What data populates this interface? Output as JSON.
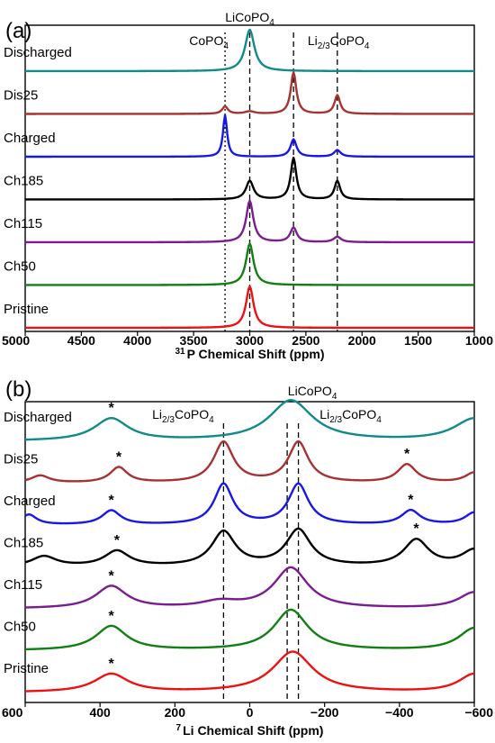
{
  "chart_data": [
    {
      "type": "line",
      "panel_label": "(a)",
      "xlabel_sup": "31",
      "xlabel": "P Chemical Shift (ppm)",
      "xlim": [
        5000,
        1000
      ],
      "xticks": [
        "5000",
        "4500",
        "4000",
        "3500",
        "3000",
        "2500",
        "2000",
        "1500",
        "1000"
      ],
      "x_tick_values": [
        5000,
        4500,
        4000,
        3500,
        3000,
        2500,
        2000,
        1500,
        1000
      ],
      "x_reversed": true,
      "grid": false,
      "reference_lines": [
        {
          "x": 3220,
          "style": "dotted",
          "label": "CoPO",
          "sub": "4"
        },
        {
          "x": 3000,
          "style": "dashed",
          "label": "LiCoPO",
          "sub": "4"
        },
        {
          "x": 2610,
          "style": "dashed",
          "label": "Li",
          "sub": "2/3",
          "label2": "CoPO",
          "sub2": "4"
        },
        {
          "x": 2220,
          "style": "dashed"
        }
      ],
      "series": [
        {
          "name": "Discharged",
          "color": "#138A8A",
          "peaks": [
            [
              3000,
              1.0,
              50
            ]
          ]
        },
        {
          "name": "Dis25",
          "color": "#A63232",
          "peaks": [
            [
              3220,
              0.18,
              30
            ],
            [
              3000,
              0.06,
              50
            ],
            [
              2610,
              1.0,
              30
            ],
            [
              2220,
              0.45,
              30
            ]
          ]
        },
        {
          "name": "Charged",
          "color": "#1818E6",
          "peaks": [
            [
              3220,
              1.0,
              22
            ],
            [
              2610,
              0.42,
              32
            ],
            [
              2220,
              0.16,
              35
            ]
          ]
        },
        {
          "name": "Ch185",
          "color": "#000000",
          "peaks": [
            [
              3000,
              0.45,
              40
            ],
            [
              2610,
              1.0,
              30
            ],
            [
              2220,
              0.45,
              30
            ]
          ]
        },
        {
          "name": "Ch115",
          "color": "#7B1C90",
          "peaks": [
            [
              3000,
              1.0,
              38
            ],
            [
              2610,
              0.35,
              35
            ],
            [
              2220,
              0.13,
              40
            ]
          ]
        },
        {
          "name": "Ch50",
          "color": "#127F12",
          "peaks": [
            [
              3000,
              1.0,
              40
            ]
          ]
        },
        {
          "name": "Pristine",
          "color": "#EE1111",
          "peaks": [
            [
              3000,
              1.0,
              40
            ]
          ]
        }
      ]
    },
    {
      "type": "line",
      "panel_label": "(b)",
      "xlabel_sup": "7",
      "xlabel": "Li Chemical Shift (ppm)",
      "xlim": [
        600,
        -600
      ],
      "xticks": [
        "600",
        "400",
        "200",
        "0",
        "−200",
        "−400",
        "−600"
      ],
      "x_tick_values": [
        600,
        400,
        200,
        0,
        -200,
        -400,
        -600
      ],
      "x_reversed": true,
      "grid": false,
      "reference_lines": [
        {
          "x": 70,
          "style": "dashed",
          "label": "Li",
          "sub": "2/3",
          "label2": "CoPO",
          "sub2": "4"
        },
        {
          "x": -100,
          "style": "dashed",
          "label": "LiCoPO",
          "sub": "4"
        },
        {
          "x": -130,
          "style": "dashed",
          "label": "Li",
          "sub": "2/3",
          "label2": "CoPO",
          "sub2": "4"
        }
      ],
      "annotations": [
        {
          "series": "Discharged",
          "x": 370,
          "text": "*"
        },
        {
          "series": "Dis25",
          "x": 350,
          "text": "*"
        },
        {
          "series": "Dis25",
          "x": -420,
          "text": "*"
        },
        {
          "series": "Charged",
          "x": 370,
          "text": "*"
        },
        {
          "series": "Charged",
          "x": -430,
          "text": "*"
        },
        {
          "series": "Ch185",
          "x": 355,
          "text": "*"
        },
        {
          "series": "Ch185",
          "x": -445,
          "text": "*"
        },
        {
          "series": "Ch115",
          "x": 370,
          "text": "*"
        },
        {
          "series": "Ch50",
          "x": 370,
          "text": "*"
        },
        {
          "series": "Pristine",
          "x": 370,
          "text": "*"
        }
      ],
      "series": [
        {
          "name": "Discharged",
          "color": "#138A8A",
          "peaks": [
            [
              370,
              0.55,
              55
            ],
            [
              -110,
              1.0,
              70
            ],
            [
              -600,
              0.55,
              65
            ]
          ]
        },
        {
          "name": "Dis25",
          "color": "#A63232",
          "peaks": [
            [
              560,
              0.18,
              30
            ],
            [
              350,
              0.38,
              28
            ],
            [
              70,
              1.0,
              32
            ],
            [
              -130,
              1.0,
              32
            ],
            [
              -420,
              0.45,
              30
            ],
            [
              -600,
              0.25,
              30
            ]
          ]
        },
        {
          "name": "Charged",
          "color": "#1818E6",
          "peaks": [
            [
              590,
              0.25,
              25
            ],
            [
              370,
              0.35,
              30
            ],
            [
              70,
              1.0,
              30
            ],
            [
              -130,
              1.0,
              32
            ],
            [
              -430,
              0.35,
              30
            ],
            [
              -600,
              0.3,
              30
            ]
          ]
        },
        {
          "name": "Ch185",
          "color": "#000000",
          "peaks": [
            [
              550,
              0.25,
              40
            ],
            [
              355,
              0.38,
              40
            ],
            [
              70,
              0.85,
              38
            ],
            [
              -130,
              0.9,
              40
            ],
            [
              -445,
              0.65,
              40
            ],
            [
              -600,
              0.4,
              40
            ]
          ]
        },
        {
          "name": "Ch115",
          "color": "#7B1C90",
          "peaks": [
            [
              370,
              0.55,
              50
            ],
            [
              80,
              0.15,
              60
            ],
            [
              -110,
              1.0,
              55
            ],
            [
              -600,
              0.4,
              50
            ]
          ]
        },
        {
          "name": "Ch50",
          "color": "#127F12",
          "peaks": [
            [
              370,
              0.6,
              50
            ],
            [
              -110,
              1.0,
              55
            ],
            [
              -600,
              0.55,
              50
            ]
          ]
        },
        {
          "name": "Pristine",
          "color": "#EE1111",
          "peaks": [
            [
              370,
              0.45,
              55
            ],
            [
              -115,
              1.0,
              65
            ],
            [
              -600,
              0.45,
              50
            ]
          ]
        }
      ]
    }
  ]
}
